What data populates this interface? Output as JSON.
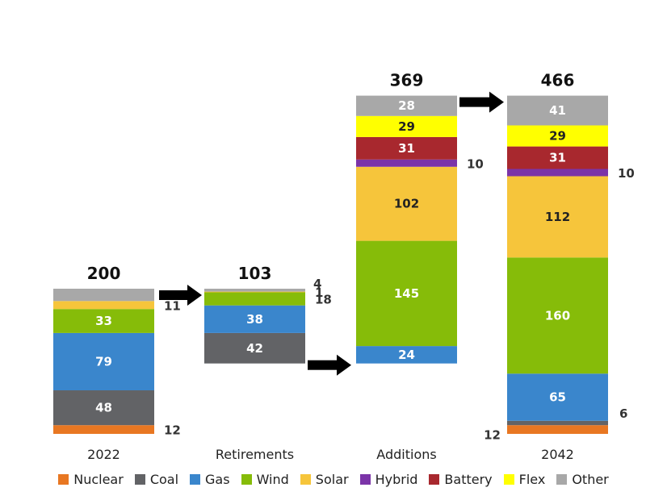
{
  "chart_data": {
    "type": "bar",
    "stacked": true,
    "categories": [
      "2022",
      "Retirements",
      "Additions",
      "2042"
    ],
    "totals": [
      200,
      103,
      369,
      466
    ],
    "series": [
      {
        "name": "Nuclear",
        "color": "#E87722",
        "values": [
          12,
          0,
          0,
          12
        ]
      },
      {
        "name": "Coal",
        "color": "#626366",
        "values": [
          48,
          42,
          0,
          6
        ]
      },
      {
        "name": "Gas",
        "color": "#3A86CC",
        "values": [
          79,
          38,
          24,
          65
        ]
      },
      {
        "name": "Wind",
        "color": "#86BC09",
        "values": [
          33,
          18,
          145,
          160
        ]
      },
      {
        "name": "Solar",
        "color": "#F6C53B",
        "values": [
          11,
          1,
          102,
          112
        ]
      },
      {
        "name": "Hybrid",
        "color": "#7B34A8",
        "values": [
          0,
          0,
          10,
          10
        ]
      },
      {
        "name": "Battery",
        "color": "#A8282E",
        "values": [
          0,
          0,
          31,
          31
        ]
      },
      {
        "name": "Flex",
        "color": "#FFFF00",
        "values": [
          0,
          0,
          29,
          29
        ]
      },
      {
        "name": "Other",
        "color": "#A8A8A8",
        "values": [
          17,
          4,
          28,
          41
        ]
      }
    ],
    "title": "",
    "xlabel": "",
    "ylabel": "",
    "legend_position": "bottom",
    "grid": false,
    "arrows": [
      {
        "from": "2022",
        "to": "Retirements",
        "at": "top"
      },
      {
        "from": "Retirements",
        "to": "Additions",
        "at": "bottom"
      },
      {
        "from": "Additions",
        "to": "2042",
        "at": "top"
      }
    ]
  }
}
